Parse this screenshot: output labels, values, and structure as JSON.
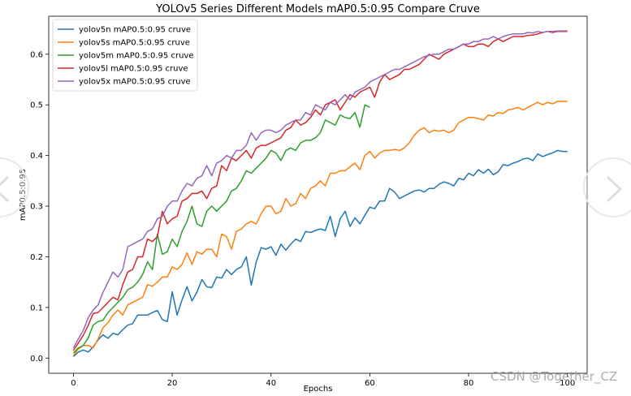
{
  "watermark": "CSDN @Together_CZ",
  "chart_data": {
    "type": "line",
    "title": "YOLOv5 Series Different Models mAP0.5:0.95 Compare Cruve",
    "xlabel": "Epochs",
    "ylabel": "mAP0.5:0.95",
    "xlim": [
      -5,
      104
    ],
    "ylim": [
      -0.03,
      0.675
    ],
    "xticks": [
      0,
      20,
      40,
      60,
      80,
      100
    ],
    "yticks": [
      0.0,
      0.1,
      0.2,
      0.3,
      0.4,
      0.5,
      0.6
    ],
    "grid": false,
    "legend": "top-left",
    "series": [
      {
        "name": "yolov5n mAP0.5:0.95 cruve",
        "color": "#1f77b4",
        "x0": 0,
        "values": [
          0.003,
          0.012,
          0.016,
          0.012,
          0.022,
          0.036,
          0.046,
          0.039,
          0.049,
          0.046,
          0.056,
          0.065,
          0.068,
          0.085,
          0.085,
          0.085,
          0.09,
          0.094,
          0.076,
          0.072,
          0.131,
          0.085,
          0.115,
          0.141,
          0.113,
          0.13,
          0.155,
          0.141,
          0.139,
          0.16,
          0.158,
          0.175,
          0.165,
          0.175,
          0.18,
          0.2,
          0.144,
          0.19,
          0.218,
          0.215,
          0.22,
          0.203,
          0.225,
          0.213,
          0.225,
          0.235,
          0.23,
          0.25,
          0.248,
          0.252,
          0.255,
          0.252,
          0.28,
          0.24,
          0.275,
          0.29,
          0.26,
          0.277,
          0.265,
          0.282,
          0.298,
          0.295,
          0.31,
          0.31,
          0.335,
          0.328,
          0.315,
          0.32,
          0.325,
          0.33,
          0.332,
          0.328,
          0.335,
          0.335,
          0.343,
          0.348,
          0.345,
          0.34,
          0.355,
          0.352,
          0.365,
          0.36,
          0.372,
          0.365,
          0.373,
          0.362,
          0.368,
          0.382,
          0.38,
          0.385,
          0.388,
          0.393,
          0.395,
          0.39,
          0.403,
          0.398,
          0.402,
          0.405,
          0.41,
          0.408,
          0.408
        ]
      },
      {
        "name": "yolov5s mAP0.5:0.95 cruve",
        "color": "#ff7f0e",
        "x0": 0,
        "values": [
          0.005,
          0.018,
          0.025,
          0.025,
          0.02,
          0.038,
          0.06,
          0.07,
          0.085,
          0.095,
          0.085,
          0.105,
          0.11,
          0.115,
          0.12,
          0.145,
          0.142,
          0.15,
          0.16,
          0.16,
          0.18,
          0.175,
          0.185,
          0.208,
          0.185,
          0.21,
          0.205,
          0.215,
          0.215,
          0.2,
          0.245,
          0.24,
          0.215,
          0.25,
          0.255,
          0.265,
          0.27,
          0.265,
          0.285,
          0.3,
          0.3,
          0.285,
          0.29,
          0.315,
          0.3,
          0.305,
          0.325,
          0.315,
          0.335,
          0.34,
          0.35,
          0.34,
          0.365,
          0.365,
          0.37,
          0.37,
          0.378,
          0.385,
          0.372,
          0.4,
          0.408,
          0.395,
          0.405,
          0.41,
          0.41,
          0.412,
          0.41,
          0.415,
          0.425,
          0.44,
          0.45,
          0.455,
          0.445,
          0.45,
          0.448,
          0.45,
          0.445,
          0.45,
          0.465,
          0.47,
          0.475,
          0.475,
          0.473,
          0.47,
          0.48,
          0.478,
          0.485,
          0.483,
          0.49,
          0.492,
          0.495,
          0.49,
          0.495,
          0.5,
          0.505,
          0.5,
          0.505,
          0.502,
          0.507,
          0.507,
          0.507
        ]
      },
      {
        "name": "yolov5m mAP0.5:0.95 cruve",
        "color": "#2ca02c",
        "x0": 0,
        "values": [
          0.01,
          0.02,
          0.025,
          0.04,
          0.065,
          0.072,
          0.075,
          0.09,
          0.1,
          0.11,
          0.12,
          0.135,
          0.14,
          0.15,
          0.165,
          0.19,
          0.175,
          0.245,
          0.205,
          0.21,
          0.235,
          0.22,
          0.25,
          0.27,
          0.3,
          0.265,
          0.26,
          0.29,
          0.3,
          0.29,
          0.3,
          0.31,
          0.33,
          0.335,
          0.35,
          0.37,
          0.365,
          0.375,
          0.385,
          0.395,
          0.41,
          0.405,
          0.39,
          0.41,
          0.415,
          0.41,
          0.425,
          0.43,
          0.43,
          0.435,
          0.445,
          0.47,
          0.465,
          0.46,
          0.48,
          0.475,
          0.473,
          0.485,
          0.456,
          0.5,
          0.495
        ]
      },
      {
        "name": "yolov5l mAP0.5:0.95 cruve",
        "color": "#d62728",
        "x0": 0,
        "values": [
          0.015,
          0.03,
          0.045,
          0.065,
          0.088,
          0.09,
          0.1,
          0.11,
          0.12,
          0.115,
          0.145,
          0.17,
          0.175,
          0.2,
          0.2,
          0.235,
          0.23,
          0.24,
          0.29,
          0.265,
          0.275,
          0.28,
          0.31,
          0.315,
          0.325,
          0.325,
          0.33,
          0.315,
          0.335,
          0.34,
          0.38,
          0.37,
          0.395,
          0.39,
          0.4,
          0.41,
          0.395,
          0.415,
          0.42,
          0.42,
          0.425,
          0.43,
          0.435,
          0.45,
          0.455,
          0.47,
          0.46,
          0.465,
          0.475,
          0.49,
          0.48,
          0.5,
          0.505,
          0.51,
          0.49,
          0.505,
          0.52,
          0.515,
          0.525,
          0.53,
          0.535,
          0.515,
          0.545,
          0.56,
          0.55,
          0.555,
          0.56,
          0.57,
          0.57,
          0.575,
          0.58,
          0.59,
          0.6,
          0.595,
          0.59,
          0.6,
          0.605,
          0.61,
          0.615,
          0.62,
          0.615,
          0.615,
          0.62,
          0.62,
          0.615,
          0.625,
          0.63,
          0.625,
          0.63,
          0.635,
          0.635,
          0.635,
          0.637,
          0.638,
          0.64,
          0.643,
          0.645,
          0.643,
          0.645,
          0.645,
          0.645
        ]
      },
      {
        "name": "yolov5x mAP0.5:0.95 cruve",
        "color": "#9467bd",
        "x0": 0,
        "values": [
          0.02,
          0.038,
          0.055,
          0.08,
          0.095,
          0.105,
          0.13,
          0.15,
          0.17,
          0.16,
          0.175,
          0.22,
          0.225,
          0.23,
          0.235,
          0.25,
          0.255,
          0.275,
          0.28,
          0.3,
          0.31,
          0.31,
          0.33,
          0.345,
          0.34,
          0.355,
          0.36,
          0.38,
          0.36,
          0.385,
          0.39,
          0.4,
          0.395,
          0.41,
          0.41,
          0.42,
          0.445,
          0.43,
          0.445,
          0.45,
          0.45,
          0.445,
          0.45,
          0.46,
          0.465,
          0.47,
          0.47,
          0.485,
          0.48,
          0.5,
          0.495,
          0.49,
          0.505,
          0.5,
          0.51,
          0.52,
          0.51,
          0.525,
          0.53,
          0.535,
          0.545,
          0.55,
          0.555,
          0.56,
          0.565,
          0.57,
          0.57,
          0.575,
          0.58,
          0.585,
          0.59,
          0.595,
          0.598,
          0.6,
          0.6,
          0.605,
          0.61,
          0.61,
          0.615,
          0.62,
          0.62,
          0.625,
          0.625,
          0.63,
          0.63,
          0.635,
          0.63,
          0.635,
          0.638,
          0.64,
          0.64,
          0.64,
          0.643,
          0.642,
          0.645,
          0.643,
          0.645,
          0.645,
          0.646,
          0.646,
          0.646
        ]
      }
    ]
  }
}
